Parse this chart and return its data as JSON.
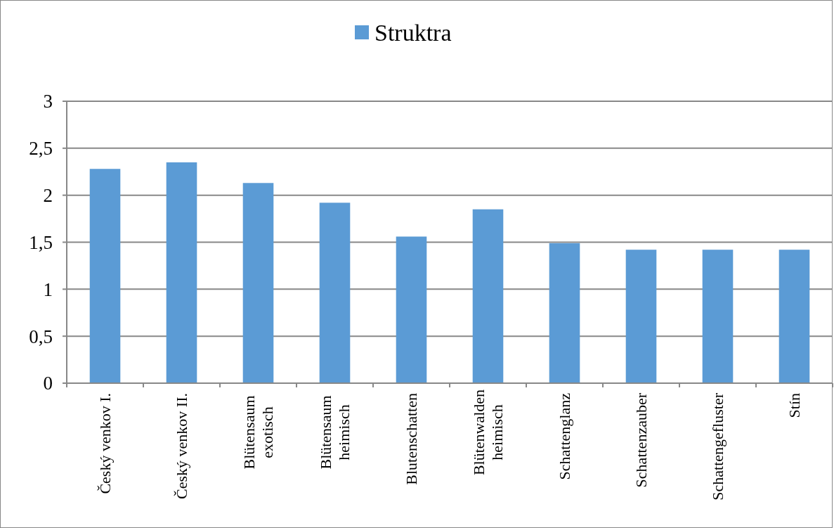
{
  "chart_data": {
    "type": "bar",
    "categories": [
      "Český venkov I.",
      "Český venkov II.",
      "Blütensaum exotisch",
      "Blütensaum heimisch",
      "Blutenschatten",
      "Blütenwalden heimisch",
      "Schattenglanz",
      "Schattenzauber",
      "Schattengefluster",
      "Stín"
    ],
    "series": [
      {
        "name": "Struktra",
        "color": "#5b9bd5",
        "values": [
          2.28,
          2.35,
          2.13,
          1.92,
          1.56,
          1.85,
          1.49,
          1.42,
          1.42,
          1.42
        ]
      }
    ],
    "ylim": [
      0,
      3
    ],
    "yticks": [
      0,
      {
        "value": 0.5,
        "label": "0,5"
      },
      1,
      {
        "value": 1.5,
        "label": "1,5"
      },
      2,
      {
        "value": 2.5,
        "label": "2,5"
      },
      3
    ],
    "grid": "y",
    "legend": "top"
  }
}
